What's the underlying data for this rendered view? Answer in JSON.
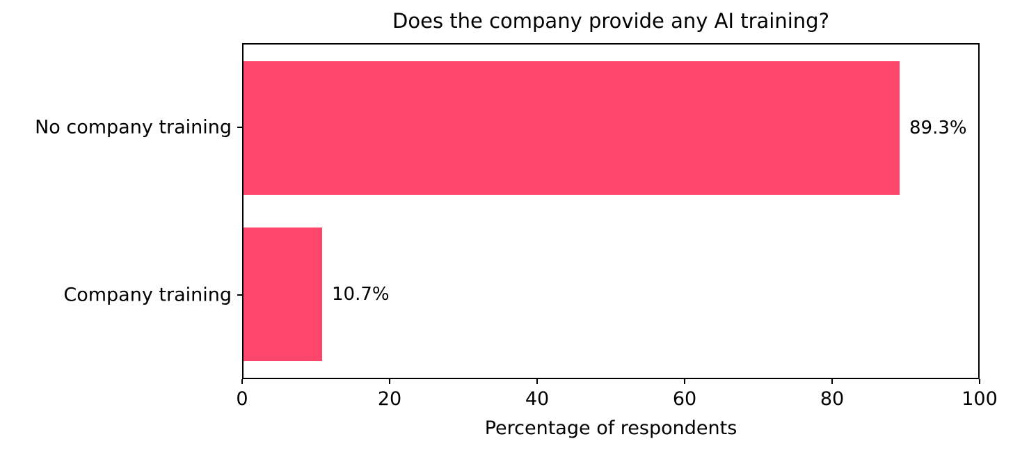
{
  "chart_data": {
    "type": "bar",
    "orientation": "horizontal",
    "title": "Does the company provide any AI training?",
    "categories": [
      "No company training",
      "Company training"
    ],
    "values": [
      89.3,
      10.7
    ],
    "value_labels": [
      "89.3%",
      "10.7%"
    ],
    "xlabel": "Percentage of respondents",
    "ylabel": "",
    "xlim": [
      0,
      100
    ],
    "xticks": [
      0,
      20,
      40,
      60,
      80,
      100
    ],
    "xtick_labels": [
      "0",
      "20",
      "40",
      "60",
      "80",
      "100"
    ],
    "bar_color": "#FC466B",
    "bar_height_fraction": 0.8,
    "grid": false,
    "legend": false,
    "background_color": "#FFFFFF",
    "spine_color": "#000000",
    "text_color": "#000000"
  }
}
